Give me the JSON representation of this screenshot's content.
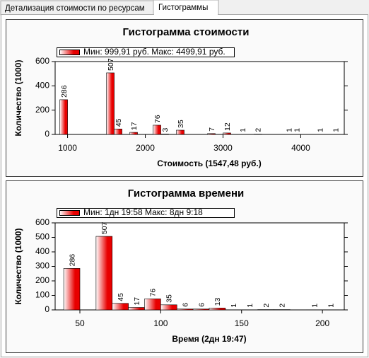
{
  "tabs": [
    "Детализация стоимости по ресурсам",
    "Гистограммы"
  ],
  "chart_data": [
    {
      "type": "bar",
      "title": "Гистограмма стоимости",
      "x_label": "Стоимость (1547,48 руб.)",
      "y_label": "Количество (1000)",
      "series": [
        {
          "name": "Мин: 999,91 руб. Макс: 4499,91 руб.",
          "color": "#e80000",
          "values": [
            286,
            507,
            45,
            17,
            76,
            3,
            35,
            7,
            12,
            1,
            2,
            1,
            1,
            1,
            1
          ]
        }
      ],
      "x": [
        950,
        1550,
        1650,
        1850,
        2150,
        2250,
        2450,
        2850,
        3050,
        3250,
        3450,
        3850,
        3950,
        4250,
        4450
      ],
      "bar_width": 100,
      "xlim": [
        840,
        4560
      ],
      "xticks": [
        1000,
        2000,
        3000,
        4000
      ],
      "ylim": [
        0,
        600
      ],
      "yticks": [
        0,
        200,
        400,
        600
      ]
    },
    {
      "type": "bar",
      "title": "Гистограмма времени",
      "x_label": "Время (2дн 19:47)",
      "y_label": "Количество (1000)",
      "series": [
        {
          "name": "Мин: 1дн 19:58 Макс: 8дн 9:18",
          "color": "#e80000",
          "values": [
            286,
            507,
            45,
            17,
            76,
            35,
            6,
            6,
            13,
            1,
            1,
            2,
            2,
            1,
            1
          ]
        }
      ],
      "x": [
        45,
        65,
        75,
        85,
        95,
        105,
        115,
        125,
        135,
        145,
        155,
        165,
        175,
        195,
        205
      ],
      "bar_width": 10,
      "xlim": [
        34.7,
        213.5
      ],
      "xticks": [
        50,
        100,
        150,
        200
      ],
      "ylim": [
        0,
        600
      ],
      "yticks": [
        0,
        100,
        200,
        300,
        400,
        500,
        600
      ]
    }
  ]
}
